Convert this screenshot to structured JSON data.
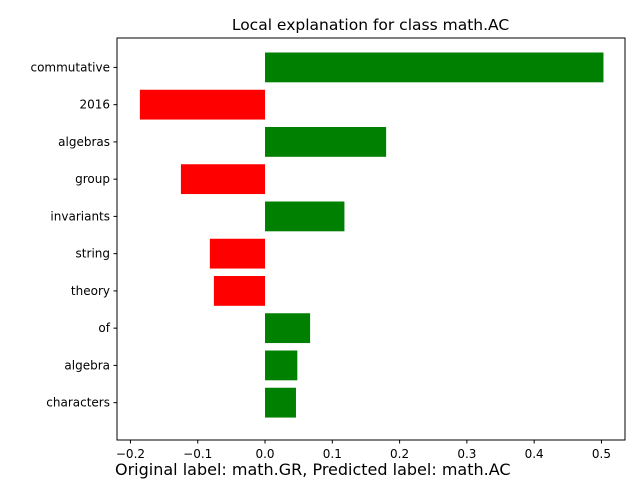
{
  "chart_data": {
    "type": "bar",
    "orientation": "horizontal",
    "title": "Local explanation for class math.AC",
    "xlabel": "",
    "ylabel": "",
    "categories": [
      "commutative",
      "2016",
      "algebras",
      "group",
      "invariants",
      "string",
      "theory",
      "of",
      "algebra",
      "characters"
    ],
    "values": [
      0.503,
      -0.186,
      0.18,
      -0.125,
      0.118,
      -0.082,
      -0.076,
      0.067,
      0.048,
      0.046
    ],
    "xlim": [
      -0.22,
      0.535
    ],
    "xticks": [
      -0.2,
      -0.1,
      0.0,
      0.1,
      0.2,
      0.3,
      0.4,
      0.5
    ],
    "xtick_labels": [
      "−0.2",
      "−0.1",
      "0.0",
      "0.1",
      "0.2",
      "0.3",
      "0.4",
      "0.5"
    ],
    "grid": false,
    "colors": {
      "positive": "#008000",
      "negative": "#ff0000"
    }
  },
  "caption": "Original label: math.GR, Predicted label: math.AC"
}
